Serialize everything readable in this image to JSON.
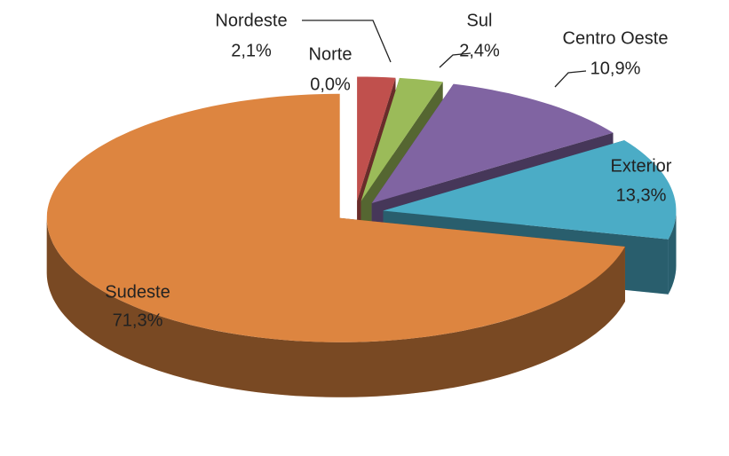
{
  "chart_data": {
    "type": "pie",
    "categories": [
      "Norte",
      "Nordeste",
      "Sul",
      "Centro Oeste",
      "Exterior",
      "Sudeste"
    ],
    "values": [
      0.0,
      2.1,
      2.4,
      10.9,
      13.3,
      71.3
    ],
    "value_labels": [
      "0,0%",
      "2,1%",
      "2,4%",
      "10,9%",
      "13,3%",
      "71,3%"
    ],
    "colors": [
      "#4f81bd",
      "#c0504d",
      "#9bbb59",
      "#8064a2",
      "#4bacc6",
      "#dd8540"
    ]
  }
}
